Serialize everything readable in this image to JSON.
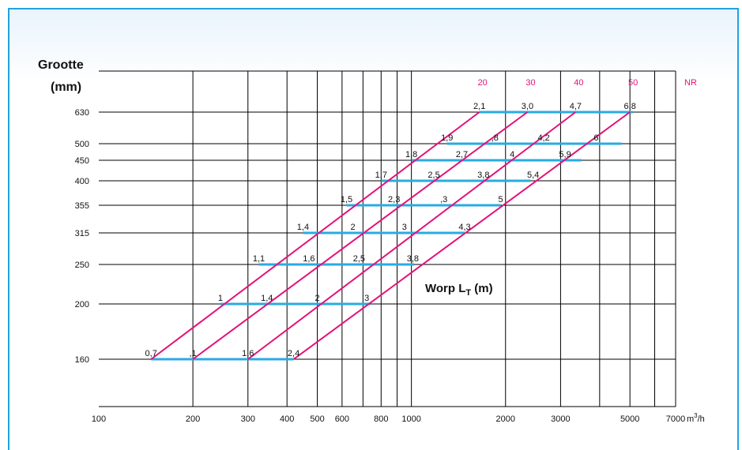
{
  "colors": {
    "frame_border": "#1fa3de",
    "pink_lines": "#e3127a",
    "cyan_bars": "#29abe2",
    "nr_text": "#e3127a",
    "grid": "#000000"
  },
  "chart_data": {
    "type": "line",
    "ylabel_line1": "Grootte",
    "ylabel_line2": "(mm)",
    "x_unit": "m³/h",
    "x_unit_base": "m",
    "x_unit_sup": "3",
    "x_unit_tail": "/h",
    "xscale": "log",
    "xlim": [
      100,
      7000
    ],
    "x_grid": [
      200,
      300,
      400,
      500,
      600,
      700,
      800,
      900,
      1000,
      2000,
      3000,
      4000,
      5000,
      6000,
      7000
    ],
    "x_ticks": [
      {
        "v": 100,
        "label": "100"
      },
      {
        "v": 200,
        "label": "200"
      },
      {
        "v": 300,
        "label": "300"
      },
      {
        "v": 400,
        "label": "400"
      },
      {
        "v": 500,
        "label": "500"
      },
      {
        "v": 600,
        "label": "600"
      },
      {
        "v": 800,
        "label": "800"
      },
      {
        "v": 1000,
        "label": "1000"
      },
      {
        "v": 2000,
        "label": "2000"
      },
      {
        "v": 3000,
        "label": "3000"
      },
      {
        "v": 5000,
        "label": "5000"
      },
      {
        "v": 7000,
        "label": "7000"
      }
    ],
    "y_ticks": [
      "630",
      "500",
      "450",
      "400",
      "355",
      "315",
      "250",
      "200",
      "160"
    ],
    "nr_label": "NR",
    "nr_lines": [
      {
        "name": "20",
        "points": [
          [
            147,
            160
          ],
          [
            1650,
            630
          ]
        ]
      },
      {
        "name": "30",
        "points": [
          [
            200,
            160
          ],
          [
            2350,
            630
          ]
        ]
      },
      {
        "name": "40",
        "points": [
          [
            300,
            160
          ],
          [
            3350,
            630
          ]
        ]
      },
      {
        "name": "50",
        "points": [
          [
            420,
            160
          ],
          [
            5000,
            630
          ]
        ]
      }
    ],
    "throw_title_main": "Worp L",
    "throw_title_sub": "T",
    "throw_title_tail": " (m)",
    "throw_bars": [
      {
        "size": "630",
        "x1": 1650,
        "x2": 5100,
        "labels": [
          {
            "x": 1650,
            "t": "2,1"
          },
          {
            "x": 2350,
            "t": "3,0"
          },
          {
            "x": 3350,
            "t": "4,7"
          },
          {
            "x": 5000,
            "t": "6,8"
          }
        ]
      },
      {
        "size": "500",
        "x1": 1300,
        "x2": 4700,
        "labels": [
          {
            "x": 1300,
            "t": "1,9"
          },
          {
            "x": 1850,
            "t": ",8"
          },
          {
            "x": 2650,
            "t": "4,2"
          },
          {
            "x": 3900,
            "t": "6"
          }
        ]
      },
      {
        "size": "450",
        "x1": 1000,
        "x2": 3500,
        "labels": [
          {
            "x": 1000,
            "t": "1,8"
          },
          {
            "x": 1450,
            "t": "2,7"
          },
          {
            "x": 2100,
            "t": "4"
          },
          {
            "x": 3100,
            "t": "5,9"
          }
        ]
      },
      {
        "size": "400",
        "x1": 800,
        "x2": 2400,
        "labels": [
          {
            "x": 800,
            "t": "1,7"
          },
          {
            "x": 1180,
            "t": "2,5"
          },
          {
            "x": 1700,
            "t": "3,8"
          },
          {
            "x": 2450,
            "t": "5,4"
          }
        ]
      },
      {
        "size": "355",
        "x1": 620,
        "x2": 1930,
        "labels": [
          {
            "x": 620,
            "t": "1,5"
          },
          {
            "x": 880,
            "t": "2,3"
          },
          {
            "x": 1270,
            "t": ",3"
          },
          {
            "x": 1930,
            "t": "5"
          }
        ]
      },
      {
        "size": "315",
        "x1": 450,
        "x2": 1480,
        "labels": [
          {
            "x": 450,
            "t": "1,4"
          },
          {
            "x": 650,
            "t": "2"
          },
          {
            "x": 950,
            "t": "3"
          },
          {
            "x": 1480,
            "t": "4,3"
          }
        ]
      },
      {
        "size": "250",
        "x1": 325,
        "x2": 1020,
        "labels": [
          {
            "x": 325,
            "t": "1,1"
          },
          {
            "x": 470,
            "t": "1,6"
          },
          {
            "x": 680,
            "t": "2,5"
          },
          {
            "x": 1010,
            "t": "3,8"
          }
        ]
      },
      {
        "size": "200",
        "x1": 245,
        "x2": 740,
        "labels": [
          {
            "x": 245,
            "t": "1"
          },
          {
            "x": 345,
            "t": "1,4"
          },
          {
            "x": 500,
            "t": "2"
          },
          {
            "x": 720,
            "t": "3"
          }
        ]
      },
      {
        "size": "160",
        "x1": 147,
        "x2": 420,
        "labels": [
          {
            "x": 147,
            "t": "0,7"
          },
          {
            "x": 200,
            "t": ",1"
          },
          {
            "x": 300,
            "t": "1,6"
          },
          {
            "x": 420,
            "t": "2,4"
          }
        ]
      }
    ]
  }
}
